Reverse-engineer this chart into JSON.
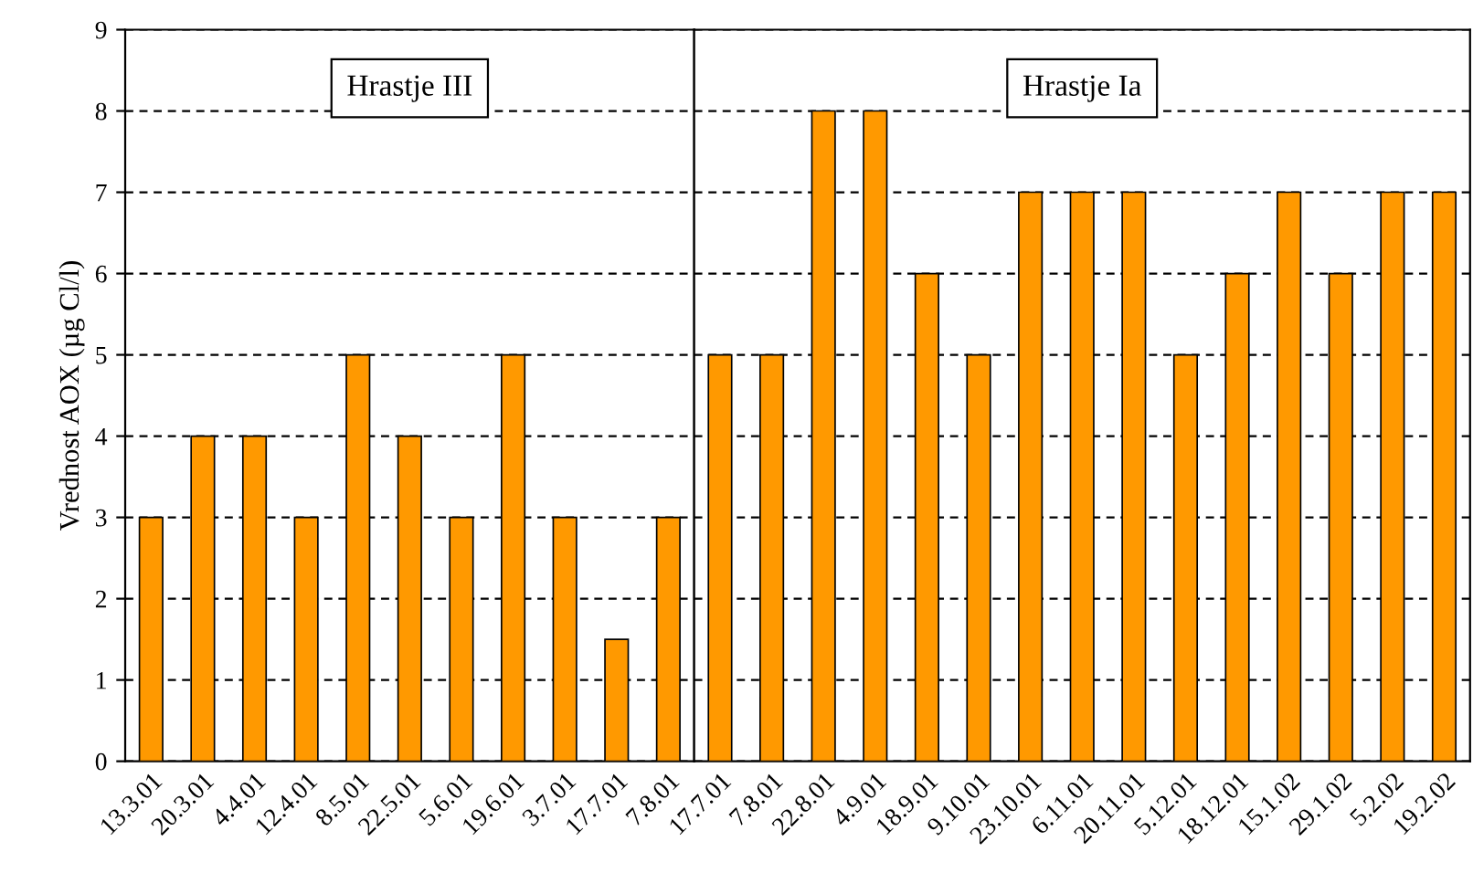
{
  "chart_data": [
    {
      "type": "bar",
      "ylabel": "Vrednost AOX (µg Cl/l)",
      "categories": [
        "13.3.01",
        "20.3.01",
        "4.4.01",
        "12.4.01",
        "8.5.01",
        "22.5.01",
        "5.6.01",
        "19.6.01",
        "3.7.01",
        "17.7.01",
        "7.8.01"
      ],
      "values": [
        3,
        4,
        4,
        3,
        5,
        4,
        3,
        5,
        3,
        1.5,
        3
      ],
      "color": "#ff9900",
      "ylim": [
        0,
        9
      ],
      "yticks": [
        0,
        1,
        2,
        3,
        4,
        5,
        6,
        7,
        8,
        9
      ],
      "grid": "y",
      "line_style": "dashed",
      "annotations": [
        "Hrastje III"
      ]
    },
    {
      "type": "bar",
      "categories": [
        "17.7.01",
        "7.8.01",
        "22.8.01",
        "4.9.01",
        "18.9.01",
        "9.10.01",
        "23.10.01",
        "6.11.01",
        "20.11.01",
        "5.12.01",
        "18.12.01",
        "15.1.02",
        "29.1.02",
        "5.2.02",
        "19.2.02"
      ],
      "values": [
        5,
        5,
        8,
        8,
        6,
        5,
        7,
        7,
        7,
        5,
        6,
        7,
        6,
        7,
        7
      ],
      "color": "#ff9900",
      "ylim": [
        0,
        9
      ],
      "yticks": [
        0,
        1,
        2,
        3,
        4,
        5,
        6,
        7,
        8,
        9
      ],
      "grid": "y",
      "line_style": "dashed",
      "tick_labels": "x",
      "annotations": [
        "Hrastje Ia"
      ]
    }
  ]
}
